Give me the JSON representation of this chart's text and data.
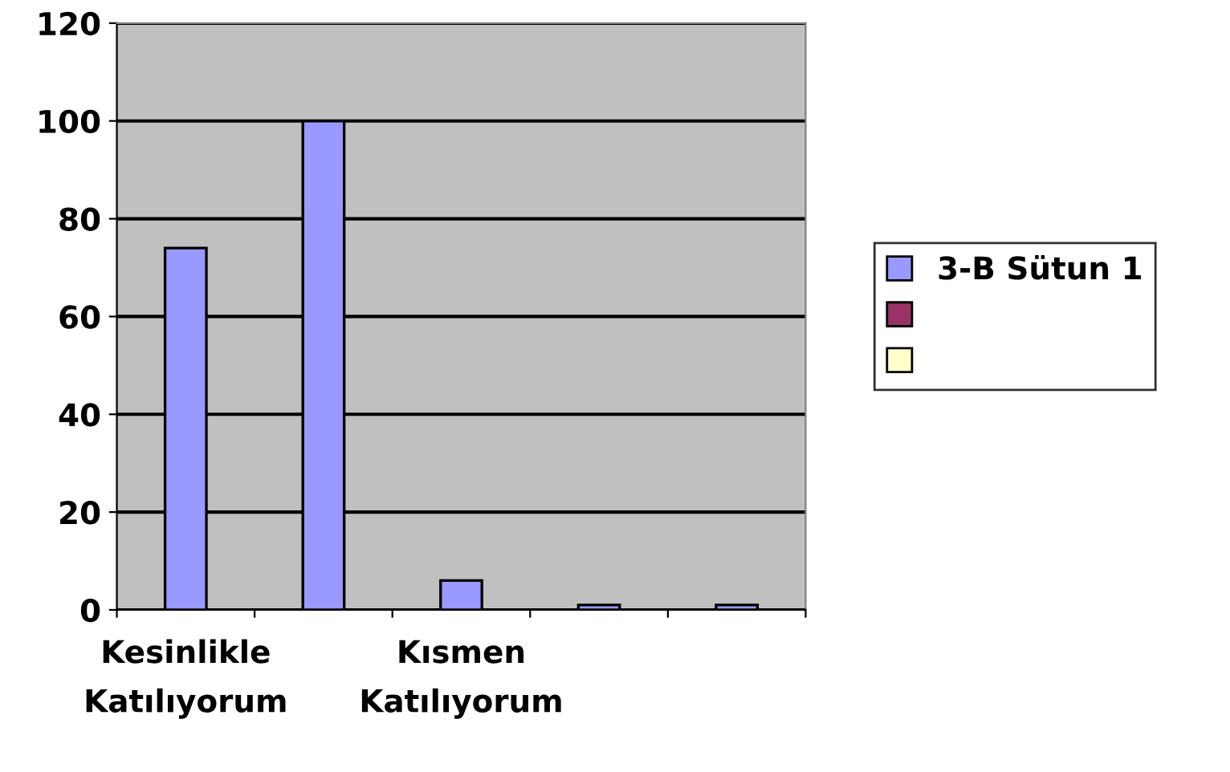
{
  "chart_data": {
    "type": "bar",
    "categories": [
      "Kesinlikle\nKatılıyorum",
      null,
      "Kısmen\nKatılıyorum",
      null,
      null
    ],
    "series": [
      {
        "name": "3-B Sütun 1",
        "color": "#9999ff",
        "values": [
          74,
          100,
          6,
          1,
          1
        ]
      },
      {
        "color": "#993366",
        "values": [
          null,
          null,
          null,
          null,
          null
        ]
      },
      {
        "color": "#ffffcc",
        "values": [
          null,
          null,
          null,
          null,
          null
        ]
      }
    ],
    "ylim": [
      0,
      120
    ],
    "yticks": [
      0,
      20,
      40,
      60,
      80,
      100,
      120
    ],
    "grid": "y",
    "legend": "right"
  }
}
